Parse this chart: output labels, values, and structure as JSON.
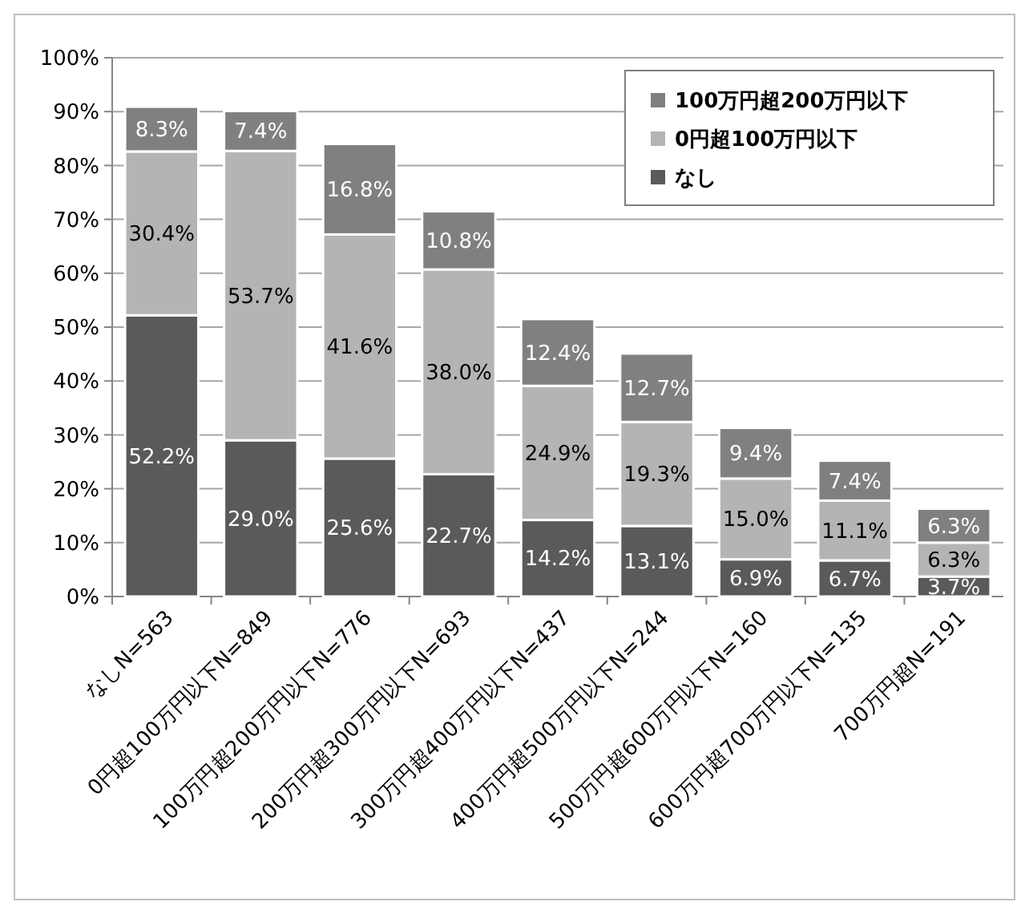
{
  "chart_data": {
    "type": "bar",
    "stacked": true,
    "grid": "y",
    "legend": "top right",
    "categories": [
      "なしN=563",
      "0円超100万円以下N=849",
      "100万円超200万円以下N=776",
      "200万円超300万円以下N=693",
      "300万円超400万円以下N=437",
      "400万円超500万円以下N=244",
      "500万円超600万円以下N=160",
      "600万円超700万円以下N=135",
      "700万円超N=191"
    ],
    "ylim": [
      0,
      100
    ],
    "yticks": [
      {
        "value": 0,
        "label": "0%"
      },
      {
        "value": 10,
        "label": "10%"
      },
      {
        "value": 20,
        "label": "20%"
      },
      {
        "value": 30,
        "label": "30%"
      },
      {
        "value": 40,
        "label": "40%"
      },
      {
        "value": 50,
        "label": "50%"
      },
      {
        "value": 60,
        "label": "60%"
      },
      {
        "value": 70,
        "label": "70%"
      },
      {
        "value": 80,
        "label": "80%"
      },
      {
        "value": 90,
        "label": "90%"
      },
      {
        "value": 100,
        "label": "100%"
      }
    ],
    "series": [
      {
        "name": "なし",
        "color": "#5a5a5a",
        "values": [
          52.2,
          29.0,
          25.6,
          22.7,
          14.2,
          13.1,
          6.9,
          6.7,
          3.7
        ],
        "value_labels": [
          "52.2%",
          "29.0%",
          "25.6%",
          "22.7%",
          "14.2%",
          "13.1%",
          "6.9%",
          "6.7%",
          "3.7%"
        ]
      },
      {
        "name": "0円超100万円以下",
        "color": "#b4b4b4",
        "values": [
          30.4,
          53.7,
          41.6,
          38.0,
          24.9,
          19.3,
          15.0,
          11.1,
          6.3
        ],
        "value_labels": [
          "30.4%",
          "53.7%",
          "41.6%",
          "38.0%",
          "24.9%",
          "19.3%",
          "15.0%",
          "11.1%",
          "6.3%"
        ]
      },
      {
        "name": "100万円超200万円以下",
        "color": "#808080",
        "values": [
          8.3,
          7.4,
          16.8,
          10.8,
          12.4,
          12.7,
          9.4,
          7.4,
          6.3
        ],
        "value_labels": [
          "8.3%",
          "7.4%",
          "16.8%",
          "10.8%",
          "12.4%",
          "12.7%",
          "9.4%",
          "7.4%",
          "6.3%"
        ]
      }
    ]
  }
}
